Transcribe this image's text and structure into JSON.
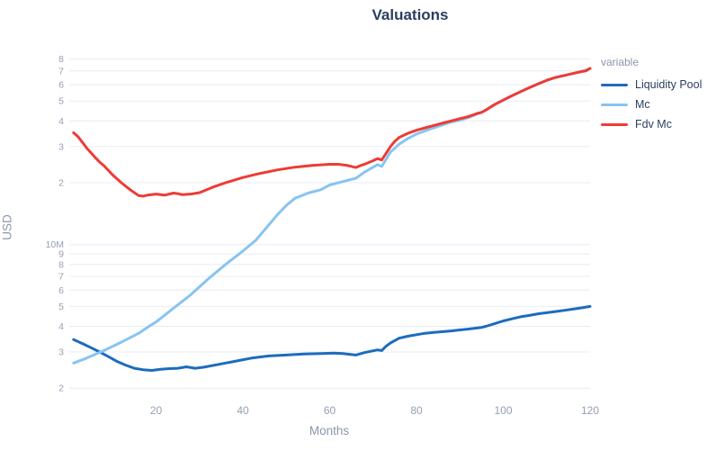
{
  "page": {
    "background": "#ffffff"
  },
  "chart_data": {
    "type": "line",
    "title": "Valuations",
    "xlabel": "Months",
    "ylabel": "USD",
    "x_scale": "linear",
    "y_scale": "log",
    "xlim": [
      0,
      120
    ],
    "ylim": [
      1740000,
      89000000
    ],
    "grid": "horizontal-only",
    "grid_color": "#e8ecf3",
    "tick_color": "#95a0b3",
    "text_color": "#2a3f5f",
    "legend": {
      "title": "variable",
      "position": "right"
    },
    "xticks": [
      {
        "label": "20",
        "value": 20
      },
      {
        "label": "40",
        "value": 40
      },
      {
        "label": "60",
        "value": 60
      },
      {
        "label": "80",
        "value": 80
      },
      {
        "label": "100",
        "value": 100
      },
      {
        "label": "120",
        "value": 120
      }
    ],
    "yticks": [
      {
        "label": "8",
        "value": 80000000
      },
      {
        "label": "7",
        "value": 70000000
      },
      {
        "label": "6",
        "value": 60000000
      },
      {
        "label": "5",
        "value": 50000000
      },
      {
        "label": "4",
        "value": 40000000
      },
      {
        "label": "3",
        "value": 30000000
      },
      {
        "label": "2",
        "value": 20000000
      },
      {
        "label": "10M",
        "value": 10000000
      },
      {
        "label": "9",
        "value": 9000000
      },
      {
        "label": "8",
        "value": 8000000
      },
      {
        "label": "7",
        "value": 7000000
      },
      {
        "label": "6",
        "value": 6000000
      },
      {
        "label": "5",
        "value": 5000000
      },
      {
        "label": "4",
        "value": 4000000
      },
      {
        "label": "3",
        "value": 3000000
      },
      {
        "label": "2",
        "value": 2000000
      }
    ],
    "series": [
      {
        "name": "Liquidity Pool",
        "color": "#1c6cbd",
        "points": [
          [
            1,
            3450000
          ],
          [
            3,
            3300000
          ],
          [
            5,
            3150000
          ],
          [
            7,
            3000000
          ],
          [
            9,
            2850000
          ],
          [
            11,
            2700000
          ],
          [
            13,
            2590000
          ],
          [
            15,
            2500000
          ],
          [
            17,
            2460000
          ],
          [
            19,
            2440000
          ],
          [
            21,
            2470000
          ],
          [
            23,
            2490000
          ],
          [
            25,
            2500000
          ],
          [
            27,
            2540000
          ],
          [
            29,
            2500000
          ],
          [
            31,
            2530000
          ],
          [
            34,
            2600000
          ],
          [
            38,
            2700000
          ],
          [
            42,
            2800000
          ],
          [
            46,
            2870000
          ],
          [
            50,
            2900000
          ],
          [
            54,
            2930000
          ],
          [
            58,
            2950000
          ],
          [
            61,
            2960000
          ],
          [
            63,
            2950000
          ],
          [
            66,
            2900000
          ],
          [
            68,
            2980000
          ],
          [
            70,
            3040000
          ],
          [
            71,
            3070000
          ],
          [
            72,
            3050000
          ],
          [
            73,
            3200000
          ],
          [
            74,
            3320000
          ],
          [
            76,
            3500000
          ],
          [
            78,
            3580000
          ],
          [
            80,
            3640000
          ],
          [
            82,
            3700000
          ],
          [
            84,
            3740000
          ],
          [
            88,
            3800000
          ],
          [
            92,
            3880000
          ],
          [
            95,
            3950000
          ],
          [
            96,
            4000000
          ],
          [
            98,
            4120000
          ],
          [
            100,
            4250000
          ],
          [
            102,
            4350000
          ],
          [
            104,
            4450000
          ],
          [
            106,
            4520000
          ],
          [
            108,
            4600000
          ],
          [
            110,
            4660000
          ],
          [
            112,
            4720000
          ],
          [
            114,
            4780000
          ],
          [
            116,
            4850000
          ],
          [
            118,
            4920000
          ],
          [
            120,
            5000000
          ]
        ]
      },
      {
        "name": "Mc",
        "color": "#88c4f0",
        "points": [
          [
            1,
            2650000
          ],
          [
            4,
            2800000
          ],
          [
            8,
            3050000
          ],
          [
            12,
            3350000
          ],
          [
            16,
            3700000
          ],
          [
            18,
            3950000
          ],
          [
            20,
            4200000
          ],
          [
            24,
            4900000
          ],
          [
            28,
            5700000
          ],
          [
            32,
            6800000
          ],
          [
            36,
            8000000
          ],
          [
            40,
            9300000
          ],
          [
            43,
            10500000
          ],
          [
            46,
            12500000
          ],
          [
            48,
            14000000
          ],
          [
            50,
            15500000
          ],
          [
            52,
            16800000
          ],
          [
            55,
            17800000
          ],
          [
            58,
            18500000
          ],
          [
            60,
            19500000
          ],
          [
            62,
            20000000
          ],
          [
            64,
            20500000
          ],
          [
            66,
            21000000
          ],
          [
            68,
            22500000
          ],
          [
            70,
            23800000
          ],
          [
            71,
            24500000
          ],
          [
            72,
            24000000
          ],
          [
            73,
            26000000
          ],
          [
            74,
            28200000
          ],
          [
            76,
            30800000
          ],
          [
            78,
            32800000
          ],
          [
            80,
            34500000
          ],
          [
            82,
            35800000
          ],
          [
            84,
            37000000
          ],
          [
            86,
            38200000
          ],
          [
            88,
            39500000
          ],
          [
            90,
            40300000
          ],
          [
            92,
            41500000
          ],
          [
            94,
            43200000
          ],
          [
            95,
            44000000
          ],
          [
            96,
            45200000
          ],
          [
            98,
            48000000
          ],
          [
            100,
            50500000
          ],
          [
            102,
            53000000
          ],
          [
            104,
            55500000
          ],
          [
            106,
            58000000
          ],
          [
            108,
            60500000
          ],
          [
            110,
            63000000
          ],
          [
            112,
            65000000
          ],
          [
            114,
            66500000
          ],
          [
            116,
            68000000
          ],
          [
            118,
            69500000
          ],
          [
            120,
            72000000
          ]
        ]
      },
      {
        "name": "Fdv Mc",
        "color": "#ee3b35",
        "points": [
          [
            1,
            35000000
          ],
          [
            2,
            33500000
          ],
          [
            3,
            31500000
          ],
          [
            4,
            29500000
          ],
          [
            5,
            28000000
          ],
          [
            6,
            26500000
          ],
          [
            7,
            25200000
          ],
          [
            8,
            24200000
          ],
          [
            10,
            21800000
          ],
          [
            12,
            20000000
          ],
          [
            14,
            18500000
          ],
          [
            16,
            17300000
          ],
          [
            17,
            17200000
          ],
          [
            18,
            17400000
          ],
          [
            20,
            17600000
          ],
          [
            22,
            17400000
          ],
          [
            24,
            17800000
          ],
          [
            25,
            17700000
          ],
          [
            26,
            17500000
          ],
          [
            28,
            17600000
          ],
          [
            30,
            17900000
          ],
          [
            33,
            19000000
          ],
          [
            36,
            20000000
          ],
          [
            40,
            21200000
          ],
          [
            44,
            22200000
          ],
          [
            48,
            23100000
          ],
          [
            52,
            23800000
          ],
          [
            56,
            24300000
          ],
          [
            60,
            24600000
          ],
          [
            62,
            24600000
          ],
          [
            64,
            24300000
          ],
          [
            66,
            23700000
          ],
          [
            67,
            24200000
          ],
          [
            68,
            24600000
          ],
          [
            70,
            25600000
          ],
          [
            71,
            26200000
          ],
          [
            72,
            25800000
          ],
          [
            73,
            27800000
          ],
          [
            74,
            30000000
          ],
          [
            75,
            31800000
          ],
          [
            76,
            33200000
          ],
          [
            78,
            34800000
          ],
          [
            80,
            36000000
          ],
          [
            82,
            37000000
          ],
          [
            84,
            38000000
          ],
          [
            86,
            39000000
          ],
          [
            88,
            40000000
          ],
          [
            90,
            41000000
          ],
          [
            92,
            42000000
          ],
          [
            94,
            43500000
          ],
          [
            95,
            44000000
          ],
          [
            96,
            45200000
          ],
          [
            98,
            48000000
          ],
          [
            100,
            50500000
          ],
          [
            102,
            53000000
          ],
          [
            104,
            55500000
          ],
          [
            106,
            58000000
          ],
          [
            108,
            60500000
          ],
          [
            110,
            63000000
          ],
          [
            112,
            65000000
          ],
          [
            114,
            66500000
          ],
          [
            116,
            68000000
          ],
          [
            118,
            69500000
          ],
          [
            119,
            70000000
          ],
          [
            120,
            72000000
          ]
        ]
      }
    ]
  }
}
